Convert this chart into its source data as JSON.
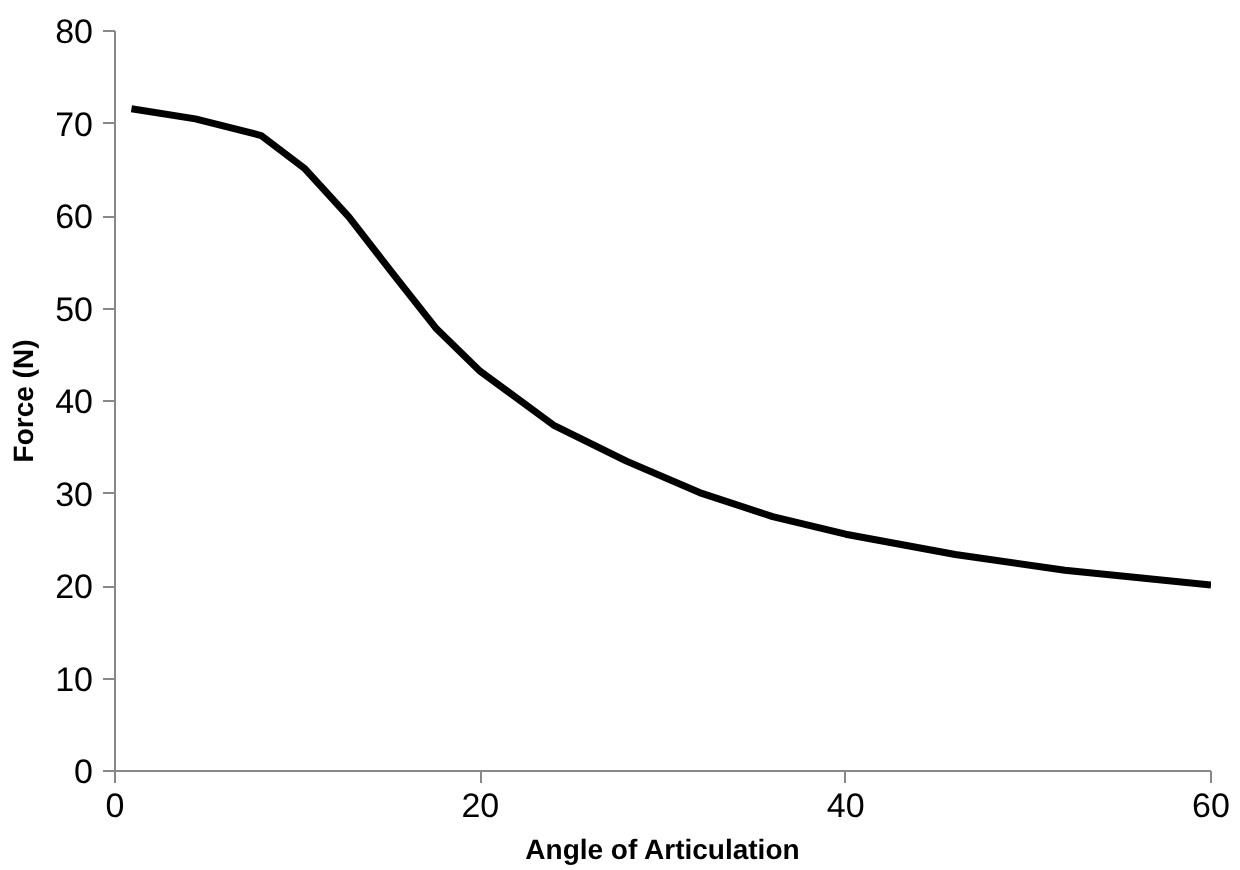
{
  "chart_data": {
    "type": "line",
    "xlabel": "Angle of Articulation",
    "ylabel": "Force (N)",
    "x": [
      0.9,
      4.4,
      8,
      10.4,
      12.8,
      15.2,
      17.6,
      20,
      24,
      28,
      32,
      36,
      40,
      46,
      52,
      60
    ],
    "series": [
      {
        "color": "#000000",
        "values": [
          71.6,
          70.5,
          68.7,
          65.1,
          59.9,
          53.8,
          47.8,
          43.2,
          37.4,
          33.5,
          30.1,
          27.5,
          25.6,
          23.4,
          21.7,
          20.1
        ]
      }
    ],
    "xlim": [
      0,
      60
    ],
    "ylim": [
      0,
      80
    ],
    "xticks": [
      0,
      20,
      40,
      60
    ],
    "yticks": [
      0,
      10,
      20,
      30,
      40,
      50,
      60,
      70,
      80
    ],
    "grid": false,
    "marker": "none",
    "line_style": "solid"
  }
}
